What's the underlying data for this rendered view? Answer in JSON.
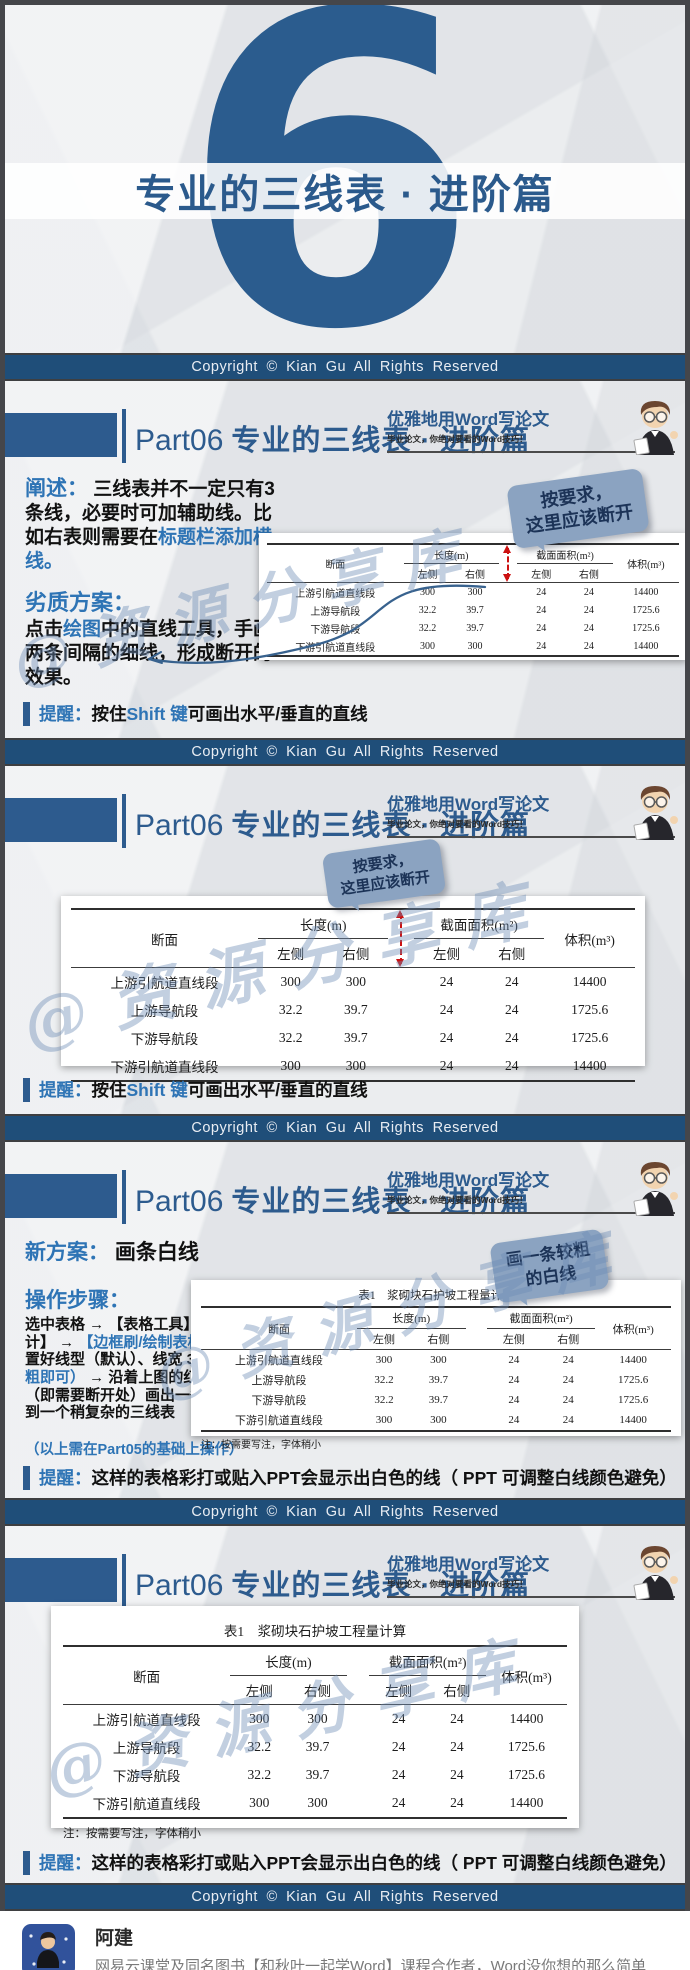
{
  "copyright": "Copyright © Kian Gu All Rights Reserved",
  "cover": {
    "big_number": "6",
    "title": "专业的三线表 · 进阶篇"
  },
  "header": {
    "part": "Part06",
    "title": "专业的三线表 · 进阶篇",
    "badge_title": "优雅地用Word写论文",
    "badge_sub": "毕业论文，你绝对要看的Word技巧！"
  },
  "watermark": "@资源分享库",
  "slide2": {
    "expound_segments": [
      {
        "t": "阐述：",
        "c": "blue-lg"
      },
      {
        "t": " 三线表并不一定只有3条线，必要时可加辅助线。比如右表则需要在",
        "c": "dark"
      },
      {
        "t": "标题栏添加横线。",
        "c": "blue"
      }
    ],
    "bad_title": "劣质方案：",
    "bad_segments": [
      {
        "t": "点击",
        "c": "dark"
      },
      {
        "t": "绘图",
        "c": "blue"
      },
      {
        "t": "中的直线工具，手画两条间隔的细线，形成断开的效果。",
        "c": "dark"
      }
    ],
    "bubble_lines": [
      "按要求，",
      "这里应该断开"
    ]
  },
  "slide4": {
    "new_plan_label": "新方案：",
    "new_plan_text": "画条白线",
    "steps_title": "操作步骤：",
    "steps_segments": [
      {
        "t": "选中表格 → 【表格工具】 → 【设计】 → ",
        "c": "dark"
      },
      {
        "t": "【边框刷/绘制表格】",
        "c": "blue"
      },
      {
        "t": " → 设置好线型（默认）、线宽 3 磅 ",
        "c": "dark"
      },
      {
        "t": "（较粗即可）",
        "c": "blue"
      },
      {
        "t": " → 沿着上图的红色虚线（即需要断开处）画出一条线 → 得到一个稍复杂的三线表",
        "c": "dark"
      }
    ],
    "basis_note": "（以上需在Part05的基础上操作）",
    "bubble_lines": [
      "画一条较粗",
      "的白线"
    ]
  },
  "tips": {
    "shift_segments": [
      {
        "t": "提醒：",
        "c": "blue"
      },
      {
        "t": "按住",
        "c": "dark"
      },
      {
        "t": "Shift 键",
        "c": "blue"
      },
      {
        "t": "可画出水平/垂直的直线",
        "c": "dark"
      }
    ],
    "ppt_segments": [
      {
        "t": "提醒：",
        "c": "blue"
      },
      {
        "t": "这样的表格彩打或贴入PPT会显示出白色的线（ PPT 可调整白线颜色避免）",
        "c": "dark"
      }
    ]
  },
  "table": {
    "caption": "表1　浆砌块石护坡工程量计算",
    "col_section": "断面",
    "col_length": "长度(m)",
    "col_area": "截面面积(m²)",
    "col_volume": "体积(m³)",
    "sub_left": "左侧",
    "sub_right": "右侧",
    "row_keys": [
      "name",
      "len_l",
      "len_r",
      "gap",
      "area_l",
      "area_r",
      "vol"
    ],
    "rows": [
      {
        "name": "上游引航道直线段",
        "len_l": "300",
        "len_r": "300",
        "area_l": "24",
        "area_r": "24",
        "vol": "14400"
      },
      {
        "name": "上游导航段",
        "len_l": "32.2",
        "len_r": "39.7",
        "area_l": "24",
        "area_r": "24",
        "vol": "1725.6"
      },
      {
        "name": "下游导航段",
        "len_l": "32.2",
        "len_r": "39.7",
        "area_l": "24",
        "area_r": "24",
        "vol": "1725.6"
      },
      {
        "name": "下游引航道直线段",
        "len_l": "300",
        "len_r": "300",
        "area_l": "24",
        "area_r": "24",
        "vol": "14400"
      }
    ],
    "note": "注：按需要写注，字体稍小"
  },
  "footer": {
    "name": "阿建",
    "desc": "网易云课堂及同名图书【和秋叶一起学Word】课程合作者，Word没你想的那么简单"
  },
  "colors": {
    "accent_blue": "#2E74B5",
    "deep_blue": "#2B5C8E",
    "bar_blue": "#1F4E79",
    "bubble_blue": "#8BA3C1",
    "arrow_red": "#CC1111"
  }
}
